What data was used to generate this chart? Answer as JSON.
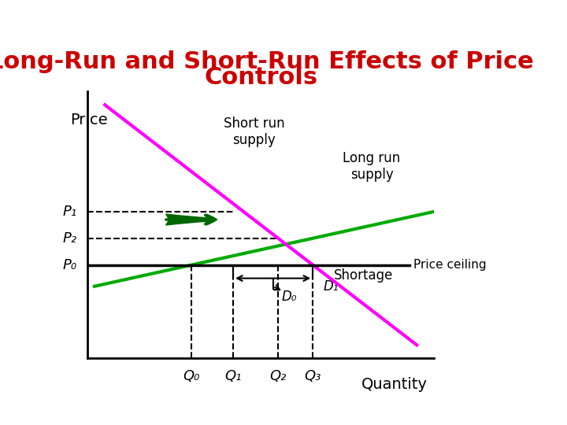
{
  "title_line1": "Long-Run and Short-Run Effects of Price",
  "title_line2": "Controls",
  "title_color": "#cc0000",
  "title_fontsize": 22,
  "bg_color": "#ffffff",
  "axis_label_price": "Price",
  "axis_label_quantity": "Quantity",
  "price_ceiling_label": "Price ceiling",
  "short_run_supply_label": "Short run\nsupply",
  "long_run_supply_label": "Long run\nsupply",
  "d0_label": "D₀",
  "d1_label": "D₁",
  "shortage_label": "Shortage",
  "p0_label": "P₀",
  "p1_label": "P₁",
  "p2_label": "P₂",
  "q0_label": "Q₀",
  "q1_label": "Q₁",
  "q2_label": "Q₂",
  "q3_label": "Q₃",
  "xlim": [
    0,
    10
  ],
  "ylim": [
    0,
    10
  ],
  "p0": 3.5,
  "p1": 5.5,
  "p2": 4.5,
  "q0": 3.0,
  "q1": 4.2,
  "q2": 5.5,
  "q3": 6.5,
  "price_ceiling_color": "#000000",
  "short_run_supply_color": "#00aa00",
  "long_run_supply_color": "#ff00ff",
  "demand_d0_color": "#00aa00",
  "demand_d1_color": "#ff00ff",
  "arrow_color": "#006600",
  "dashed_color": "#000000",
  "shortage_bracket_color": "#000000",
  "font_italic": "italic"
}
